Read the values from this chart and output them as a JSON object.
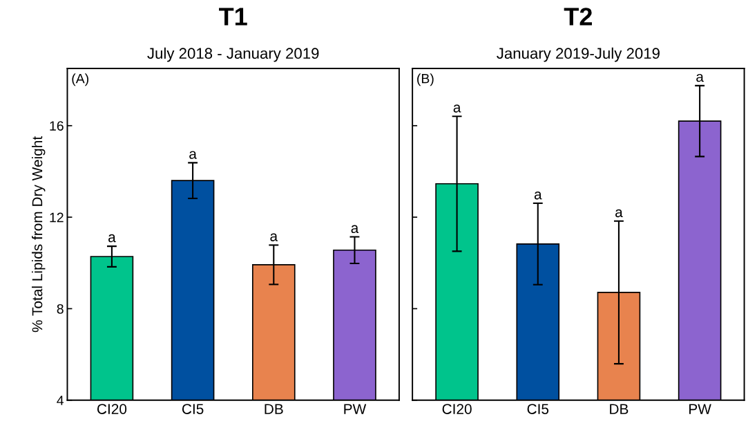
{
  "chart_data": [
    {
      "type": "bar",
      "title": "T1",
      "subtitle": "July 2018 - January 2019",
      "ylabel": "% Total Lipids from Dry Weight",
      "categories": [
        "CI20",
        "CI5",
        "DB",
        "PW"
      ],
      "values": [
        10.28,
        13.6,
        9.92,
        10.56
      ],
      "errors": [
        0.45,
        0.78,
        0.86,
        0.58
      ],
      "colors": [
        "#00c48c",
        "#0050a0",
        "#e8834e",
        "#8c64cf"
      ],
      "ylim": [
        4,
        18.5
      ],
      "yticks": [
        4,
        8,
        12,
        16
      ],
      "grid": false,
      "annotations": [
        "(A)",
        {
          "text": "a",
          "x": "CI20",
          "y": 10.74
        },
        {
          "text": "a",
          "x": "CI5",
          "y": 14.38
        },
        {
          "text": "a",
          "x": "DB",
          "y": 10.78
        },
        {
          "text": "a",
          "x": "PW",
          "y": 11.14
        }
      ]
    },
    {
      "type": "bar",
      "title": "T2",
      "subtitle": "January 2019-July 2019",
      "categories": [
        "CI20",
        "CI5",
        "DB",
        "PW"
      ],
      "values": [
        13.46,
        10.83,
        8.71,
        16.2
      ],
      "errors": [
        2.95,
        1.78,
        3.12,
        1.55
      ],
      "colors": [
        "#00c48c",
        "#0050a0",
        "#e8834e",
        "#8c64cf"
      ],
      "ylim": [
        4,
        18.5
      ],
      "yticks": [
        4,
        8,
        12,
        16
      ],
      "tick_labels": "x",
      "grid": false,
      "annotations": [
        "(B)",
        {
          "text": "a",
          "x": "CI20",
          "y": 16.41
        },
        {
          "text": "a",
          "x": "CI5",
          "y": 12.61
        },
        {
          "text": "a",
          "x": "DB",
          "y": 11.83
        },
        {
          "text": "a",
          "x": "PW",
          "y": 17.75
        }
      ]
    }
  ]
}
